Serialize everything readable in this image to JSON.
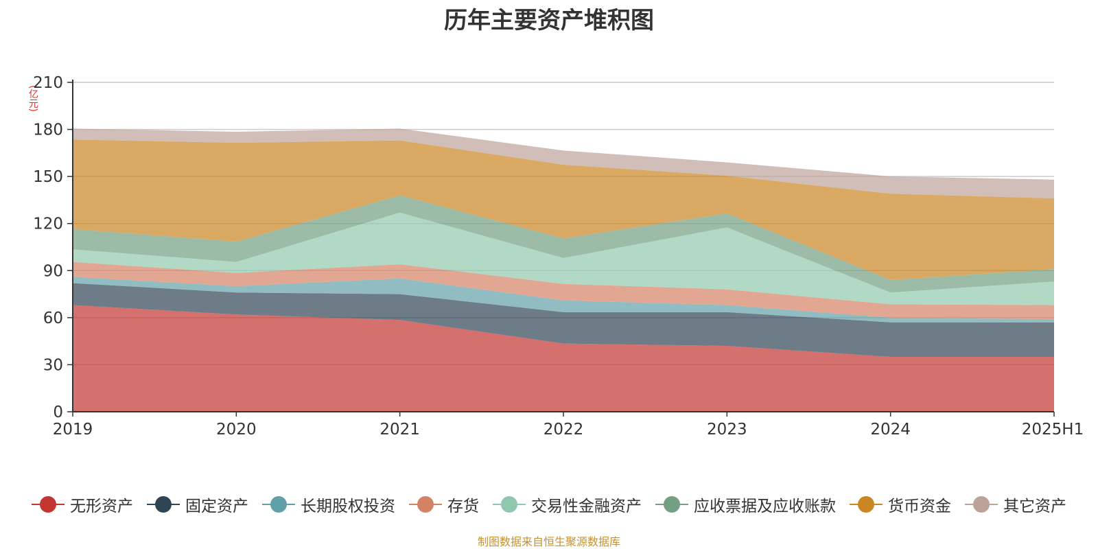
{
  "chart_data": {
    "type": "area",
    "stacked": true,
    "title": "历年主要资产堆积图",
    "unit_label": "(亿元)",
    "source_note": "制图数据来自恒生聚源数据库",
    "categories": [
      "2019",
      "2020",
      "2021",
      "2022",
      "2023",
      "2024",
      "2025H1"
    ],
    "ylim": [
      0,
      210
    ],
    "yticks": [
      0,
      30,
      60,
      90,
      120,
      150,
      180,
      210
    ],
    "grid": true,
    "legend_position": "bottom",
    "series": [
      {
        "name": "无形资产",
        "color": "#c23531",
        "values": [
          68,
          62,
          58.5,
          43.5,
          42,
          35,
          35
        ]
      },
      {
        "name": "固定资产",
        "color": "#2f4554",
        "values": [
          14,
          14,
          16.5,
          20,
          21.5,
          22,
          22
        ]
      },
      {
        "name": "长期股权投资",
        "color": "#61a0a8",
        "values": [
          4,
          4,
          10,
          7.5,
          4.5,
          3,
          2
        ]
      },
      {
        "name": "存货",
        "color": "#d48265",
        "values": [
          9.5,
          8.5,
          9,
          10.5,
          10,
          8.5,
          9
        ]
      },
      {
        "name": "交易性金融资产",
        "color": "#91c7ae",
        "values": [
          8,
          7,
          33,
          16.5,
          39.5,
          7.5,
          15
        ]
      },
      {
        "name": "应收票据及应收账款",
        "color": "#749f83",
        "values": [
          13,
          13,
          11,
          12.5,
          9,
          8,
          8
        ]
      },
      {
        "name": "货币资金",
        "color": "#ca8622",
        "values": [
          57,
          63,
          35,
          47,
          24,
          55,
          45
        ]
      },
      {
        "name": "其它资产",
        "color": "#bda29a",
        "values": [
          7,
          7,
          7.5,
          9,
          8.5,
          11,
          12
        ]
      }
    ]
  }
}
